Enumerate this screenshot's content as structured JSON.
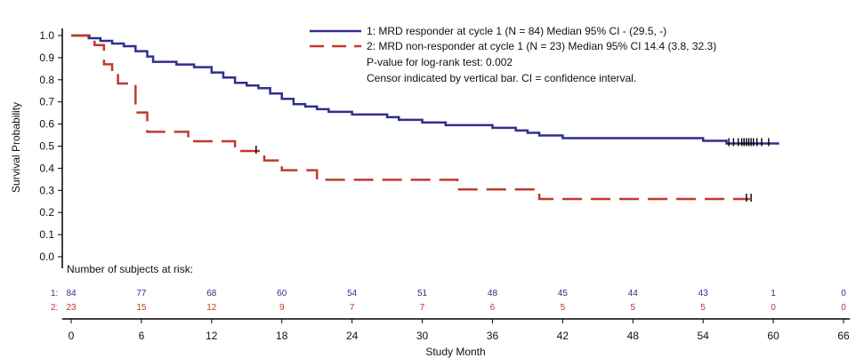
{
  "chart_data": {
    "type": "line",
    "xlabel": "Study Month",
    "ylabel": "Survival Probability",
    "xlim": [
      0,
      66
    ],
    "ylim": [
      0.0,
      1.0
    ],
    "x_ticks": [
      "0",
      "6",
      "12",
      "18",
      "24",
      "30",
      "36",
      "42",
      "48",
      "54",
      "60",
      "66"
    ],
    "y_ticks": [
      "0.0",
      "0.1",
      "0.2",
      "0.3",
      "0.4",
      "0.5",
      "0.6",
      "0.7",
      "0.8",
      "0.9",
      "1.0"
    ],
    "legend_position": "top-right",
    "series": [
      {
        "name": "1: MRD responder at cycle 1 (N = 84) Median 95% CI - (29.5, -)",
        "color": "#2f2f8f",
        "style": "solid",
        "x": [
          0,
          1.5,
          2.5,
          3.5,
          4.5,
          5.5,
          6.5,
          7,
          9,
          10.5,
          12,
          13,
          14,
          15,
          16,
          17,
          18,
          19,
          20,
          21,
          22,
          24,
          27,
          28,
          30,
          32,
          33,
          36,
          38,
          39,
          40,
          42,
          43,
          54,
          56,
          58,
          60.5
        ],
        "y": [
          1.0,
          0.988,
          0.976,
          0.964,
          0.952,
          0.929,
          0.905,
          0.881,
          0.869,
          0.857,
          0.833,
          0.81,
          0.786,
          0.774,
          0.762,
          0.738,
          0.714,
          0.69,
          0.679,
          0.667,
          0.655,
          0.643,
          0.631,
          0.619,
          0.607,
          0.595,
          0.595,
          0.583,
          0.571,
          0.56,
          0.548,
          0.536,
          0.536,
          0.524,
          0.512,
          0.512,
          0.512
        ],
        "censor_x": [
          56.2,
          56.6,
          57.0,
          57.3,
          57.5,
          57.7,
          57.9,
          58.1,
          58.3,
          58.6,
          59.0,
          59.6
        ]
      },
      {
        "name": "2: MRD non-responder at cycle 1 (N = 23) Median 95% CI 14.4 (3.8, 32.3)",
        "color": "#c0392b",
        "style": "dashed",
        "x": [
          0,
          2,
          2.8,
          3.5,
          4,
          5.5,
          6.5,
          8,
          10,
          14,
          16.5,
          18,
          21,
          33,
          40,
          58
        ],
        "y": [
          1.0,
          0.957,
          0.87,
          0.826,
          0.783,
          0.652,
          0.565,
          0.565,
          0.522,
          0.478,
          0.435,
          0.391,
          0.348,
          0.304,
          0.261,
          0.261
        ],
        "censor_x": [
          15.8,
          57.7,
          58.1
        ]
      }
    ],
    "annotations": [
      "P-value for log-rank test: 0.002",
      "Censor indicated by vertical bar. CI = confidence interval."
    ],
    "risk_table": {
      "title": "Number of subjects at risk:",
      "times": [
        0,
        6,
        12,
        18,
        24,
        30,
        36,
        42,
        48,
        54,
        60,
        66
      ],
      "rows": [
        {
          "label": "1:",
          "values": [
            "84",
            "77",
            "68",
            "60",
            "54",
            "51",
            "48",
            "45",
            "44",
            "43",
            "1",
            "0"
          ],
          "color": "#2f2f8f"
        },
        {
          "label": "2:",
          "values": [
            "23",
            "15",
            "12",
            "9",
            "7",
            "7",
            "6",
            "5",
            "5",
            "5",
            "0",
            "0"
          ],
          "color": "#c0392b"
        }
      ]
    }
  }
}
